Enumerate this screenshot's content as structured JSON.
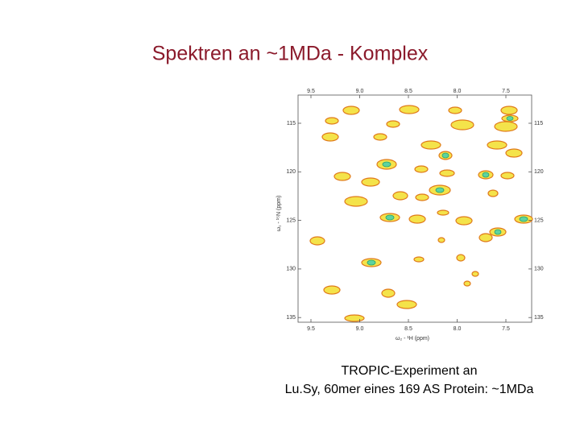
{
  "title": "Spektren an ~1MDa - Komplex",
  "figure": {
    "x_axis_label": "ω₂ - ¹H (ppm)",
    "y_axis_label": "ω₁ - ¹⁵N (ppm)",
    "x_tick_labels": [
      "9.5",
      "9.0",
      "8.5",
      "8.0",
      "7.5"
    ],
    "y_tick_labels": [
      "115",
      "120",
      "125",
      "130",
      "135"
    ]
  },
  "caption": [
    "TROPIC-Experiment an",
    "Lu.Sy, 60mer eines 169 AS Protein: ~1MDa"
  ]
}
